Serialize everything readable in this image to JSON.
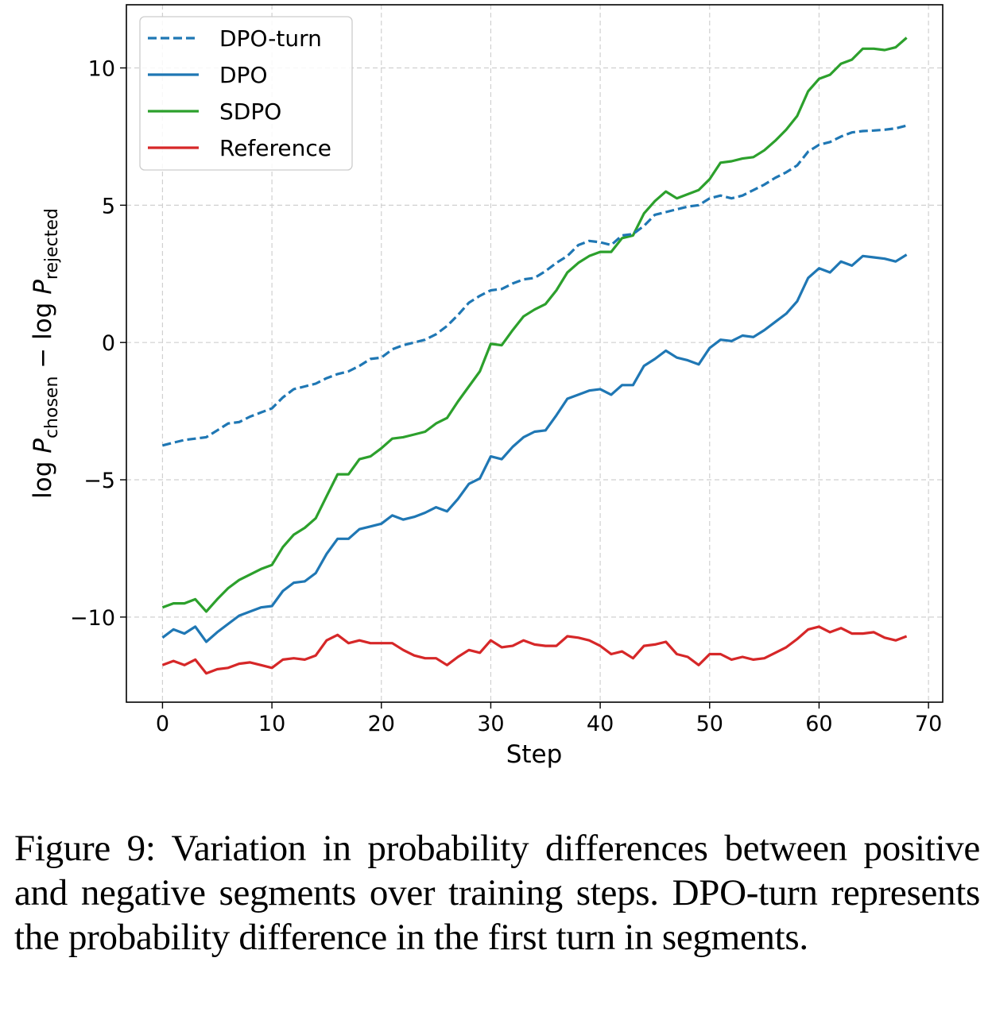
{
  "chart_data": {
    "type": "line",
    "title": "",
    "xlabel": "Step",
    "ylabel": "log P_chosen − log P_rejected",
    "ylabel_parts": {
      "pre": "log ",
      "P1": "P",
      "sub1": "chosen",
      "mid": " − log ",
      "P2": "P",
      "sub2": "rejected"
    },
    "xlim": [
      -3.3,
      71.3
    ],
    "ylim": [
      -13.1,
      12.3
    ],
    "xticks": [
      0,
      10,
      20,
      30,
      40,
      50,
      60,
      70
    ],
    "yticks": [
      -10,
      -5,
      0,
      5,
      10
    ],
    "xtick_labels": [
      "0",
      "10",
      "20",
      "30",
      "40",
      "50",
      "60",
      "70"
    ],
    "ytick_labels": [
      "−10",
      "−5",
      "0",
      "5",
      "10"
    ],
    "grid": true,
    "legend_position": "top-left",
    "x": [
      0,
      1,
      2,
      3,
      4,
      5,
      6,
      7,
      8,
      9,
      10,
      11,
      12,
      13,
      14,
      15,
      16,
      17,
      18,
      19,
      20,
      21,
      22,
      23,
      24,
      25,
      26,
      27,
      28,
      29,
      30,
      31,
      32,
      33,
      34,
      35,
      36,
      37,
      38,
      39,
      40,
      41,
      42,
      43,
      44,
      45,
      46,
      47,
      48,
      49,
      50,
      51,
      52,
      53,
      54,
      55,
      56,
      57,
      58,
      59,
      60,
      61,
      62,
      63,
      64,
      65,
      66,
      67,
      68
    ],
    "series": [
      {
        "name": "DPO-turn",
        "color": "#1f77b4",
        "style": "dashed",
        "values": [
          -3.75,
          -3.65,
          -3.55,
          -3.5,
          -3.45,
          -3.2,
          -2.95,
          -2.9,
          -2.7,
          -2.55,
          -2.4,
          -2.0,
          -1.7,
          -1.6,
          -1.5,
          -1.3,
          -1.15,
          -1.05,
          -0.85,
          -0.6,
          -0.55,
          -0.25,
          -0.1,
          0.0,
          0.1,
          0.3,
          0.6,
          1.0,
          1.45,
          1.7,
          1.9,
          1.95,
          2.15,
          2.3,
          2.35,
          2.6,
          2.9,
          3.15,
          3.55,
          3.7,
          3.65,
          3.55,
          3.9,
          3.95,
          4.25,
          4.65,
          4.75,
          4.85,
          4.95,
          5.0,
          5.25,
          5.35,
          5.25,
          5.35,
          5.55,
          5.75,
          6.0,
          6.2,
          6.45,
          6.95,
          7.2,
          7.3,
          7.5,
          7.65,
          7.7,
          7.72,
          7.75,
          7.8,
          7.9
        ]
      },
      {
        "name": "DPO",
        "color": "#1f77b4",
        "style": "solid",
        "values": [
          -10.75,
          -10.45,
          -10.6,
          -10.35,
          -10.9,
          -10.55,
          -10.25,
          -9.95,
          -9.8,
          -9.65,
          -9.6,
          -9.05,
          -8.75,
          -8.7,
          -8.4,
          -7.7,
          -7.15,
          -7.15,
          -6.8,
          -6.7,
          -6.6,
          -6.3,
          -6.45,
          -6.35,
          -6.2,
          -6.0,
          -6.15,
          -5.7,
          -5.15,
          -4.95,
          -4.15,
          -4.25,
          -3.8,
          -3.45,
          -3.25,
          -3.2,
          -2.65,
          -2.05,
          -1.9,
          -1.75,
          -1.7,
          -1.9,
          -1.55,
          -1.55,
          -0.85,
          -0.6,
          -0.3,
          -0.55,
          -0.65,
          -0.8,
          -0.2,
          0.1,
          0.05,
          0.25,
          0.2,
          0.45,
          0.75,
          1.05,
          1.5,
          2.35,
          2.7,
          2.55,
          2.95,
          2.8,
          3.15,
          3.1,
          3.05,
          2.95,
          3.2
        ]
      },
      {
        "name": "SDPO",
        "color": "#2ca02c",
        "style": "solid",
        "values": [
          -9.65,
          -9.5,
          -9.5,
          -9.35,
          -9.8,
          -9.35,
          -8.95,
          -8.65,
          -8.45,
          -8.25,
          -8.1,
          -7.45,
          -7.0,
          -6.75,
          -6.4,
          -5.6,
          -4.8,
          -4.8,
          -4.25,
          -4.15,
          -3.85,
          -3.5,
          -3.45,
          -3.35,
          -3.25,
          -2.95,
          -2.75,
          -2.15,
          -1.6,
          -1.05,
          -0.05,
          -0.1,
          0.45,
          0.95,
          1.2,
          1.4,
          1.9,
          2.55,
          2.9,
          3.15,
          3.3,
          3.3,
          3.8,
          3.9,
          4.7,
          5.15,
          5.5,
          5.25,
          5.4,
          5.55,
          5.95,
          6.55,
          6.6,
          6.7,
          6.75,
          7.0,
          7.35,
          7.75,
          8.25,
          9.15,
          9.6,
          9.75,
          10.15,
          10.3,
          10.7,
          10.7,
          10.65,
          10.75,
          11.1
        ]
      },
      {
        "name": "Reference",
        "color": "#d62728",
        "style": "solid",
        "values": [
          -11.75,
          -11.6,
          -11.75,
          -11.55,
          -12.05,
          -11.9,
          -11.85,
          -11.7,
          -11.65,
          -11.75,
          -11.85,
          -11.55,
          -11.5,
          -11.55,
          -11.4,
          -10.85,
          -10.65,
          -10.95,
          -10.85,
          -10.95,
          -10.95,
          -10.95,
          -11.2,
          -11.4,
          -11.5,
          -11.5,
          -11.75,
          -11.45,
          -11.2,
          -11.3,
          -10.85,
          -11.1,
          -11.05,
          -10.85,
          -11.0,
          -11.05,
          -11.05,
          -10.7,
          -10.75,
          -10.85,
          -11.05,
          -11.35,
          -11.25,
          -11.5,
          -11.05,
          -11.0,
          -10.9,
          -11.35,
          -11.45,
          -11.75,
          -11.35,
          -11.35,
          -11.55,
          -11.45,
          -11.55,
          -11.5,
          -11.3,
          -11.1,
          -10.8,
          -10.45,
          -10.35,
          -10.55,
          -10.4,
          -10.6,
          -10.6,
          -10.55,
          -10.75,
          -10.85,
          -10.7
        ]
      }
    ]
  },
  "caption": "Figure 9: Variation in probability differences between positive and negative segments over training steps. DPO-turn represents the probability difference in the first turn in segments."
}
